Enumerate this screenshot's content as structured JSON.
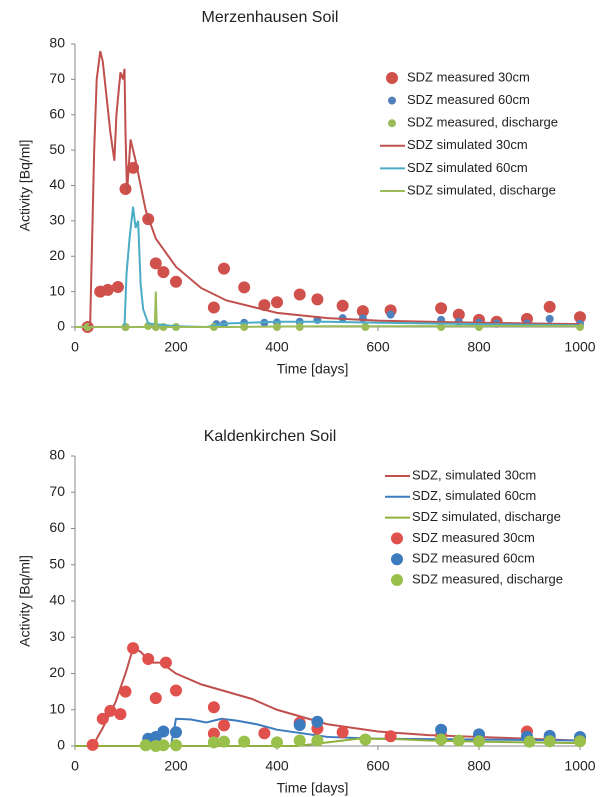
{
  "chart_data": [
    {
      "type": "line",
      "title": "Merzenhausen Soil",
      "xlabel": "Time [days]",
      "ylabel": "Activity [Bq/ml]",
      "xlim": [
        0,
        1000
      ],
      "xticks": [
        0,
        200,
        400,
        600,
        800,
        1000
      ],
      "ylim": [
        0,
        80
      ],
      "yticks": [
        0,
        10,
        20,
        30,
        40,
        50,
        60,
        70,
        80
      ],
      "legend": "upper right",
      "series": [
        {
          "name": "SDZ measured 30cm",
          "mode": "markers",
          "marker": "large",
          "color": "#d0504c",
          "x": [
            25,
            50,
            65,
            85,
            100,
            115,
            145,
            160,
            175,
            200,
            275,
            295,
            335,
            375,
            400,
            445,
            480,
            530,
            570,
            625,
            725,
            760,
            800,
            835,
            895,
            940,
            1000
          ],
          "values": [
            0,
            10,
            10.5,
            11.3,
            39,
            45,
            30.5,
            18,
            15.5,
            12.8,
            5.5,
            16.5,
            11.2,
            6.2,
            7,
            9.2,
            7.8,
            6,
            4.5,
            4.7,
            5.3,
            3.5,
            2,
            1.5,
            2.3,
            5.7,
            2.8
          ]
        },
        {
          "name": "SDZ measured 60cm",
          "mode": "markers",
          "marker": "small",
          "color": "#4f81bd",
          "x": [
            25,
            100,
            280,
            295,
            335,
            375,
            400,
            445,
            480,
            530,
            570,
            625,
            725,
            760,
            800,
            835,
            895,
            940,
            1000
          ],
          "values": [
            0,
            0,
            0.8,
            0.8,
            1.2,
            1.2,
            1.3,
            1.5,
            2,
            2.5,
            2.5,
            3.5,
            2,
            1.5,
            1.2,
            1,
            1,
            2.3,
            0.9
          ]
        },
        {
          "name": "SDZ measured, discharge",
          "mode": "markers",
          "marker": "small",
          "color": "#9bbb59",
          "x": [
            25,
            100,
            145,
            160,
            175,
            200,
            275,
            335,
            400,
            445,
            575,
            725,
            800,
            1000
          ],
          "values": [
            0,
            0,
            0.3,
            0,
            0,
            0,
            0,
            0,
            0,
            0,
            0,
            0,
            0,
            0
          ]
        },
        {
          "name": "SDZ simulated 30cm",
          "mode": "line",
          "color": "#c0504d",
          "x": [
            25,
            30,
            38,
            43,
            50,
            55,
            70,
            78,
            82,
            90,
            95,
            98,
            100,
            103,
            110,
            120,
            140,
            160,
            200,
            250,
            300,
            400,
            500,
            600,
            800,
            1000
          ],
          "values": [
            0,
            0.5,
            50,
            70,
            78,
            75,
            55,
            47,
            60,
            72,
            70,
            73,
            55,
            38,
            53,
            47,
            33,
            25,
            17,
            11,
            7.5,
            4,
            2.5,
            1.8,
            1.2,
            0.8
          ]
        },
        {
          "name": "SDZ simulated 60cm",
          "mode": "line",
          "color": "#4bacc6",
          "x": [
            0,
            98,
            102,
            108,
            115,
            120,
            125,
            130,
            135,
            145,
            200,
            260,
            300,
            400,
            500,
            600,
            800,
            1000
          ],
          "values": [
            0,
            0,
            15,
            25,
            34,
            28,
            30,
            12,
            5,
            1,
            0.2,
            0,
            1,
            1.5,
            1.5,
            1.2,
            0.8,
            0.5
          ]
        },
        {
          "name": "SDZ simulated, discharge",
          "mode": "line",
          "color": "#9bbb59",
          "x": [
            0,
            158,
            160,
            162,
            300,
            500,
            1000
          ],
          "values": [
            0,
            0,
            10,
            0,
            0,
            0.2,
            0.3
          ]
        }
      ]
    },
    {
      "type": "line",
      "title": "Kaldenkirchen Soil",
      "xlabel": "Time [days]",
      "ylabel": "Activity  [Bq/ml]",
      "xlim": [
        0,
        1000
      ],
      "xticks": [
        0,
        200,
        400,
        600,
        800,
        1000
      ],
      "ylim": [
        0,
        80
      ],
      "yticks": [
        0,
        10,
        20,
        30,
        40,
        50,
        60,
        70,
        80
      ],
      "legend": "upper right",
      "series": [
        {
          "name": "SDZ, simulated 30cm",
          "mode": "line",
          "color": "#c0504d",
          "x": [
            0,
            35,
            55,
            80,
            100,
            115,
            130,
            150,
            170,
            200,
            250,
            300,
            350,
            400,
            450,
            500,
            600,
            700,
            800,
            1000
          ],
          "values": [
            0,
            0,
            5,
            12,
            20,
            27,
            26,
            23,
            23,
            20,
            17,
            15,
            13,
            10,
            8,
            6,
            4,
            3,
            2.5,
            1.5
          ]
        },
        {
          "name": "SDZ, simulated 60cm",
          "mode": "line",
          "color": "#3d7bbf",
          "x": [
            0,
            190,
            200,
            230,
            260,
            290,
            320,
            360,
            400,
            450,
            500,
            600,
            800,
            1000
          ],
          "values": [
            0,
            0,
            7.5,
            7.3,
            6.5,
            7.5,
            7,
            6,
            4.5,
            3.5,
            2.5,
            2,
            1.8,
            1.5
          ]
        },
        {
          "name": "SDZ simulated, discharge",
          "mode": "line",
          "color": "#8fb03d",
          "x": [
            0,
            440,
            500,
            560,
            620,
            700,
            800,
            1000
          ],
          "values": [
            0,
            0,
            1,
            2,
            2,
            1.5,
            1.2,
            0.8
          ]
        },
        {
          "name": "SDZ measured 30cm",
          "mode": "markers",
          "marker": "large",
          "color": "#e0504c",
          "x": [
            35,
            55,
            70,
            90,
            100,
            115,
            145,
            160,
            180,
            200,
            275,
            275,
            295,
            375,
            445,
            480,
            530,
            625,
            725,
            800,
            895,
            940,
            1000
          ],
          "values": [
            0.3,
            7.5,
            9.7,
            8.8,
            15,
            27,
            24,
            13.2,
            23,
            15.3,
            10.7,
            3.4,
            5.7,
            3.5,
            6.4,
            4.8,
            3.8,
            2.7,
            2.8,
            2.6,
            4,
            2.2,
            2
          ]
        },
        {
          "name": "SDZ measured 60cm",
          "mode": "markers",
          "marker": "large",
          "color": "#3d7bbf",
          "x": [
            145,
            160,
            175,
            200,
            445,
            480,
            725,
            800,
            895,
            940,
            1000
          ],
          "values": [
            2,
            2.5,
            4,
            3.8,
            5.8,
            6.7,
            4.5,
            3.2,
            2.6,
            2.8,
            2.5
          ]
        },
        {
          "name": "SDZ measured, discharge",
          "mode": "markers",
          "marker": "large",
          "color": "#98c04a",
          "x": [
            140,
            160,
            175,
            200,
            275,
            295,
            335,
            400,
            445,
            480,
            575,
            725,
            760,
            800,
            900,
            940,
            1000
          ],
          "values": [
            0.2,
            0,
            0.2,
            0.2,
            1,
            1.2,
            1.2,
            1,
            1.5,
            1.5,
            1.8,
            1.8,
            1.5,
            1.3,
            1.2,
            1.3,
            1.3
          ]
        }
      ]
    }
  ]
}
